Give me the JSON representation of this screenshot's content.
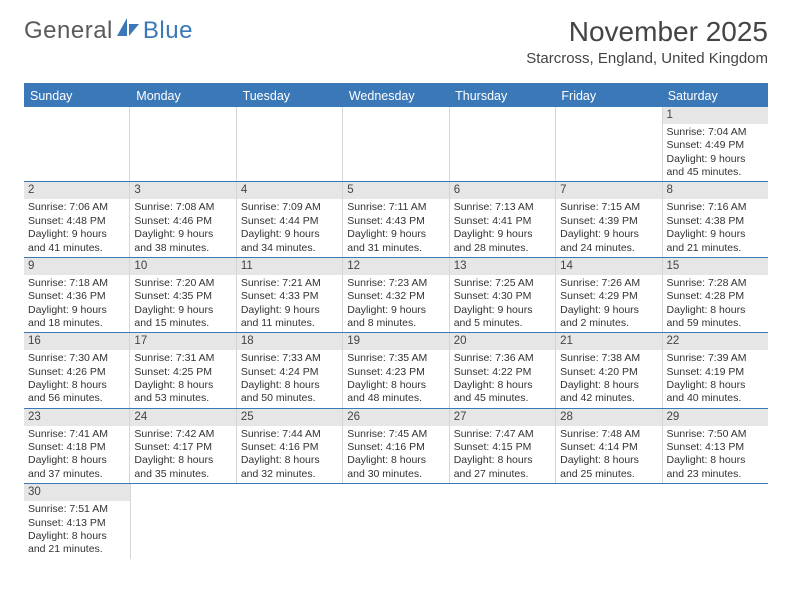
{
  "logo": {
    "text1": "General",
    "text2": "Blue"
  },
  "title": "November 2025",
  "location": "Starcross, England, United Kingdom",
  "colors": {
    "accent": "#3a78b8",
    "header_bg": "#3a78b8",
    "daynum_bg": "#e6e6e6"
  },
  "day_headers": [
    "Sunday",
    "Monday",
    "Tuesday",
    "Wednesday",
    "Thursday",
    "Friday",
    "Saturday"
  ],
  "weeks": [
    [
      null,
      null,
      null,
      null,
      null,
      null,
      {
        "n": "1",
        "sr": "7:04 AM",
        "ss": "4:49 PM",
        "dl": "9 hours and 45 minutes."
      }
    ],
    [
      {
        "n": "2",
        "sr": "7:06 AM",
        "ss": "4:48 PM",
        "dl": "9 hours and 41 minutes."
      },
      {
        "n": "3",
        "sr": "7:08 AM",
        "ss": "4:46 PM",
        "dl": "9 hours and 38 minutes."
      },
      {
        "n": "4",
        "sr": "7:09 AM",
        "ss": "4:44 PM",
        "dl": "9 hours and 34 minutes."
      },
      {
        "n": "5",
        "sr": "7:11 AM",
        "ss": "4:43 PM",
        "dl": "9 hours and 31 minutes."
      },
      {
        "n": "6",
        "sr": "7:13 AM",
        "ss": "4:41 PM",
        "dl": "9 hours and 28 minutes."
      },
      {
        "n": "7",
        "sr": "7:15 AM",
        "ss": "4:39 PM",
        "dl": "9 hours and 24 minutes."
      },
      {
        "n": "8",
        "sr": "7:16 AM",
        "ss": "4:38 PM",
        "dl": "9 hours and 21 minutes."
      }
    ],
    [
      {
        "n": "9",
        "sr": "7:18 AM",
        "ss": "4:36 PM",
        "dl": "9 hours and 18 minutes."
      },
      {
        "n": "10",
        "sr": "7:20 AM",
        "ss": "4:35 PM",
        "dl": "9 hours and 15 minutes."
      },
      {
        "n": "11",
        "sr": "7:21 AM",
        "ss": "4:33 PM",
        "dl": "9 hours and 11 minutes."
      },
      {
        "n": "12",
        "sr": "7:23 AM",
        "ss": "4:32 PM",
        "dl": "9 hours and 8 minutes."
      },
      {
        "n": "13",
        "sr": "7:25 AM",
        "ss": "4:30 PM",
        "dl": "9 hours and 5 minutes."
      },
      {
        "n": "14",
        "sr": "7:26 AM",
        "ss": "4:29 PM",
        "dl": "9 hours and 2 minutes."
      },
      {
        "n": "15",
        "sr": "7:28 AM",
        "ss": "4:28 PM",
        "dl": "8 hours and 59 minutes."
      }
    ],
    [
      {
        "n": "16",
        "sr": "7:30 AM",
        "ss": "4:26 PM",
        "dl": "8 hours and 56 minutes."
      },
      {
        "n": "17",
        "sr": "7:31 AM",
        "ss": "4:25 PM",
        "dl": "8 hours and 53 minutes."
      },
      {
        "n": "18",
        "sr": "7:33 AM",
        "ss": "4:24 PM",
        "dl": "8 hours and 50 minutes."
      },
      {
        "n": "19",
        "sr": "7:35 AM",
        "ss": "4:23 PM",
        "dl": "8 hours and 48 minutes."
      },
      {
        "n": "20",
        "sr": "7:36 AM",
        "ss": "4:22 PM",
        "dl": "8 hours and 45 minutes."
      },
      {
        "n": "21",
        "sr": "7:38 AM",
        "ss": "4:20 PM",
        "dl": "8 hours and 42 minutes."
      },
      {
        "n": "22",
        "sr": "7:39 AM",
        "ss": "4:19 PM",
        "dl": "8 hours and 40 minutes."
      }
    ],
    [
      {
        "n": "23",
        "sr": "7:41 AM",
        "ss": "4:18 PM",
        "dl": "8 hours and 37 minutes."
      },
      {
        "n": "24",
        "sr": "7:42 AM",
        "ss": "4:17 PM",
        "dl": "8 hours and 35 minutes."
      },
      {
        "n": "25",
        "sr": "7:44 AM",
        "ss": "4:16 PM",
        "dl": "8 hours and 32 minutes."
      },
      {
        "n": "26",
        "sr": "7:45 AM",
        "ss": "4:16 PM",
        "dl": "8 hours and 30 minutes."
      },
      {
        "n": "27",
        "sr": "7:47 AM",
        "ss": "4:15 PM",
        "dl": "8 hours and 27 minutes."
      },
      {
        "n": "28",
        "sr": "7:48 AM",
        "ss": "4:14 PM",
        "dl": "8 hours and 25 minutes."
      },
      {
        "n": "29",
        "sr": "7:50 AM",
        "ss": "4:13 PM",
        "dl": "8 hours and 23 minutes."
      }
    ],
    [
      {
        "n": "30",
        "sr": "7:51 AM",
        "ss": "4:13 PM",
        "dl": "8 hours and 21 minutes."
      },
      null,
      null,
      null,
      null,
      null,
      null
    ]
  ],
  "labels": {
    "sunrise": "Sunrise:",
    "sunset": "Sunset:",
    "daylight": "Daylight:"
  }
}
